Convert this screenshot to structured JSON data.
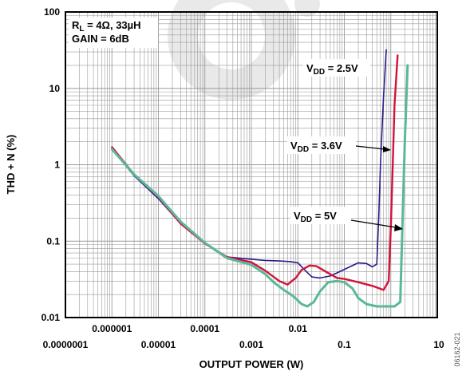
{
  "chart_data": {
    "type": "line",
    "scale": {
      "x": "log",
      "y": "log"
    },
    "xlim": [
      1e-07,
      10
    ],
    "ylim": [
      0.01,
      100
    ],
    "grid": true,
    "xlabel": "OUTPUT POWER (W)",
    "ylabel": "THD + N (%)",
    "x_tick_labels": [
      {
        "value": 1e-07,
        "label": "0.0000001"
      },
      {
        "value": 1e-06,
        "label": "0.000001"
      },
      {
        "value": 1e-05,
        "label": "0.00001"
      },
      {
        "value": 0.0001,
        "label": "0.0001"
      },
      {
        "value": 0.001,
        "label": "0.001"
      },
      {
        "value": 0.01,
        "label": "0.01"
      },
      {
        "value": 0.1,
        "label": "0.1"
      },
      {
        "value": 10,
        "label": "10"
      }
    ],
    "y_tick_labels": [
      {
        "value": 0.01,
        "label": "0.01"
      },
      {
        "value": 0.1,
        "label": "0.1"
      },
      {
        "value": 1,
        "label": "1"
      },
      {
        "value": 10,
        "label": "10"
      },
      {
        "value": 100,
        "label": "100"
      }
    ],
    "conditions": {
      "load_prefix": "R",
      "load_sub": "L",
      "load_suffix": " = 4Ω, 33µH",
      "gain": "GAIN = 6dB"
    },
    "series": [
      {
        "label_main": "V",
        "label_sub": "DD",
        "label_value": " = 2.5V",
        "color": "#2a1a8a",
        "x": [
          1e-06,
          3e-06,
          1e-05,
          3e-05,
          0.0001,
          0.0003,
          0.001,
          0.002,
          0.004,
          0.007,
          0.01,
          0.014,
          0.02,
          0.03,
          0.05,
          0.08,
          0.12,
          0.2,
          0.3,
          0.4,
          0.5,
          0.55,
          0.6,
          0.7,
          0.8
        ],
        "y": [
          1.6,
          0.72,
          0.36,
          0.17,
          0.095,
          0.062,
          0.058,
          0.056,
          0.055,
          0.054,
          0.052,
          0.042,
          0.034,
          0.033,
          0.035,
          0.04,
          0.045,
          0.052,
          0.051,
          0.046,
          0.05,
          0.2,
          1.0,
          8.0,
          32.0
        ]
      },
      {
        "label_main": "V",
        "label_sub": "DD",
        "label_value": " = 3.6V",
        "color": "#d1133a",
        "x": [
          1e-06,
          3e-06,
          1e-05,
          3e-05,
          0.0001,
          0.0003,
          0.001,
          0.002,
          0.004,
          0.006,
          0.009,
          0.012,
          0.018,
          0.025,
          0.04,
          0.07,
          0.1,
          0.2,
          0.4,
          0.7,
          0.9,
          1.0,
          1.1,
          1.2,
          1.4
        ],
        "y": [
          1.7,
          0.75,
          0.38,
          0.17,
          0.093,
          0.062,
          0.053,
          0.041,
          0.03,
          0.027,
          0.033,
          0.042,
          0.048,
          0.047,
          0.04,
          0.033,
          0.032,
          0.029,
          0.026,
          0.023,
          0.03,
          0.15,
          1.0,
          6.0,
          27.0
        ]
      },
      {
        "label_main": "V",
        "label_sub": "DD",
        "label_value": " = 5V",
        "color": "#5ab898",
        "x": [
          1e-06,
          3e-06,
          1e-05,
          3e-05,
          0.0001,
          0.0003,
          0.001,
          0.002,
          0.003,
          0.005,
          0.008,
          0.012,
          0.016,
          0.022,
          0.03,
          0.045,
          0.07,
          0.1,
          0.15,
          0.2,
          0.3,
          0.5,
          0.8,
          1.2,
          1.6,
          1.8,
          2.0,
          2.3
        ],
        "y": [
          1.6,
          0.75,
          0.39,
          0.18,
          0.095,
          0.06,
          0.049,
          0.037,
          0.029,
          0.023,
          0.019,
          0.015,
          0.014,
          0.016,
          0.022,
          0.029,
          0.03,
          0.029,
          0.024,
          0.018,
          0.015,
          0.014,
          0.014,
          0.014,
          0.016,
          0.2,
          2.0,
          20.0
        ]
      }
    ]
  },
  "figure_id": "06162-021",
  "accent": {
    "watermark": "#e9e9e9",
    "grid": "#9a9a9a",
    "frame": "#000000"
  }
}
